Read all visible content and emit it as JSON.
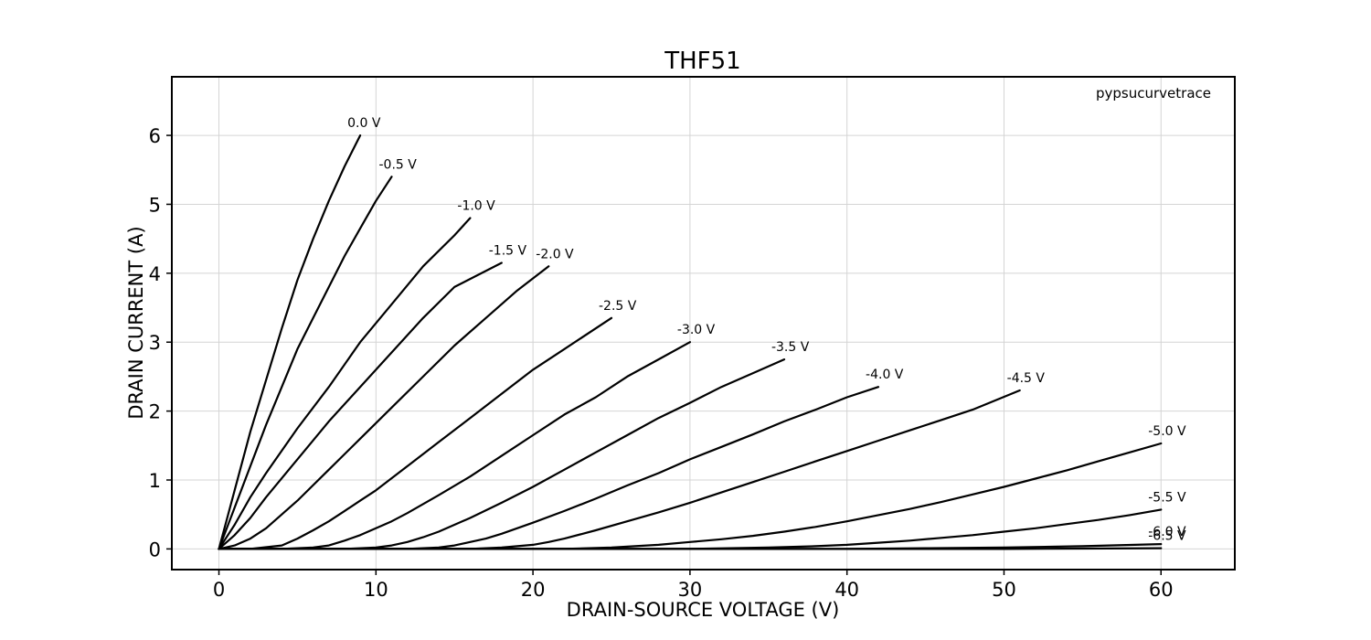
{
  "chart_data": {
    "type": "line",
    "title": "THF51",
    "xlabel": "DRAIN-SOURCE VOLTAGE (V)",
    "ylabel": "DRAIN CURRENT (A)",
    "annotation": "pypsucurvetrace",
    "xlim": [
      -3,
      64.7
    ],
    "ylim": [
      -0.3,
      6.85
    ],
    "xticks": [
      0,
      10,
      20,
      30,
      40,
      50,
      60
    ],
    "yticks": [
      0,
      1,
      2,
      3,
      4,
      5,
      6
    ],
    "grid": true,
    "series": [
      {
        "label": "0.0 V",
        "x": [
          0,
          1,
          2,
          3,
          4,
          5,
          6,
          7,
          8,
          9
        ],
        "y": [
          0,
          0.85,
          1.7,
          2.45,
          3.2,
          3.9,
          4.5,
          5.05,
          5.55,
          6.0
        ]
      },
      {
        "label": "-0.5 V",
        "x": [
          0,
          1,
          2,
          3,
          4,
          5,
          6,
          7,
          8,
          9,
          10,
          11
        ],
        "y": [
          0,
          0.6,
          1.2,
          1.8,
          2.35,
          2.9,
          3.35,
          3.8,
          4.25,
          4.65,
          5.05,
          5.4
        ]
      },
      {
        "label": "-1.0 V",
        "x": [
          0,
          1,
          2,
          3,
          5,
          7,
          9,
          11,
          13,
          15,
          16
        ],
        "y": [
          0,
          0.35,
          0.75,
          1.1,
          1.75,
          2.35,
          3.0,
          3.55,
          4.1,
          4.55,
          4.8
        ]
      },
      {
        "label": "-1.5 V",
        "x": [
          0,
          1,
          2,
          3,
          5,
          7,
          9,
          11,
          13,
          15,
          18
        ],
        "y": [
          0,
          0.2,
          0.45,
          0.75,
          1.3,
          1.85,
          2.35,
          2.85,
          3.35,
          3.8,
          4.15
        ]
      },
      {
        "label": "-2.0 V",
        "x": [
          0,
          1,
          2,
          3,
          5,
          7,
          9,
          11,
          13,
          15,
          17,
          19,
          21
        ],
        "y": [
          0,
          0.05,
          0.15,
          0.3,
          0.7,
          1.15,
          1.6,
          2.05,
          2.5,
          2.95,
          3.35,
          3.75,
          4.1
        ]
      },
      {
        "label": "-2.5 V",
        "x": [
          0,
          2,
          4,
          5,
          6,
          7,
          8,
          9,
          10,
          12,
          14,
          16,
          18,
          20,
          22,
          25
        ],
        "y": [
          0,
          0,
          0.05,
          0.15,
          0.27,
          0.4,
          0.55,
          0.7,
          0.85,
          1.2,
          1.55,
          1.9,
          2.25,
          2.6,
          2.9,
          3.35
        ]
      },
      {
        "label": "-3.0 V",
        "x": [
          0,
          4,
          6,
          7,
          8,
          9,
          10,
          11,
          12,
          14,
          16,
          18,
          20,
          22,
          24,
          26,
          28,
          30
        ],
        "y": [
          0,
          0,
          0.02,
          0.05,
          0.12,
          0.2,
          0.3,
          0.4,
          0.52,
          0.78,
          1.05,
          1.35,
          1.65,
          1.95,
          2.2,
          2.5,
          2.75,
          3.0
        ]
      },
      {
        "label": "-3.5 V",
        "x": [
          0,
          8,
          10,
          11,
          12,
          13,
          14,
          16,
          18,
          20,
          22,
          24,
          26,
          28,
          30,
          32,
          34,
          36
        ],
        "y": [
          0,
          0,
          0.02,
          0.05,
          0.1,
          0.17,
          0.25,
          0.45,
          0.67,
          0.9,
          1.15,
          1.4,
          1.65,
          1.9,
          2.12,
          2.35,
          2.55,
          2.75
        ]
      },
      {
        "label": "-4.0 V",
        "x": [
          0,
          12,
          14,
          15,
          16,
          17,
          18,
          20,
          22,
          24,
          26,
          28,
          30,
          32,
          34,
          36,
          38,
          40,
          42
        ],
        "y": [
          0,
          0,
          0.02,
          0.05,
          0.1,
          0.15,
          0.22,
          0.38,
          0.55,
          0.73,
          0.92,
          1.1,
          1.3,
          1.48,
          1.66,
          1.85,
          2.02,
          2.2,
          2.35
        ]
      },
      {
        "label": "-4.5 V",
        "x": [
          0,
          16,
          18,
          20,
          21,
          22,
          24,
          26,
          28,
          30,
          32,
          34,
          36,
          38,
          40,
          42,
          44,
          46,
          48,
          51
        ],
        "y": [
          0,
          0,
          0.02,
          0.06,
          0.1,
          0.15,
          0.27,
          0.4,
          0.53,
          0.67,
          0.82,
          0.97,
          1.12,
          1.27,
          1.42,
          1.57,
          1.72,
          1.87,
          2.02,
          2.3
        ]
      },
      {
        "label": "-5.0 V",
        "x": [
          0,
          22,
          25,
          28,
          30,
          32,
          34,
          36,
          38,
          40,
          42,
          44,
          46,
          48,
          50,
          52,
          54,
          56,
          58,
          60
        ],
        "y": [
          0,
          0,
          0.02,
          0.06,
          0.1,
          0.14,
          0.19,
          0.25,
          0.32,
          0.4,
          0.49,
          0.58,
          0.68,
          0.79,
          0.9,
          1.02,
          1.14,
          1.27,
          1.4,
          1.53
        ]
      },
      {
        "label": "-5.5 V",
        "x": [
          0,
          30,
          35,
          38,
          40,
          42,
          44,
          46,
          48,
          50,
          52,
          54,
          56,
          58,
          60
        ],
        "y": [
          0,
          0,
          0.02,
          0.04,
          0.06,
          0.09,
          0.12,
          0.16,
          0.2,
          0.25,
          0.3,
          0.36,
          0.42,
          0.49,
          0.57
        ]
      },
      {
        "label": "-6.0 V",
        "x": [
          0,
          40,
          45,
          50,
          55,
          60
        ],
        "y": [
          0,
          0,
          0.01,
          0.02,
          0.04,
          0.07
        ]
      },
      {
        "label": "-6.5 V",
        "x": [
          0,
          50,
          55,
          60
        ],
        "y": [
          0,
          0,
          0.005,
          0.01
        ]
      }
    ]
  }
}
